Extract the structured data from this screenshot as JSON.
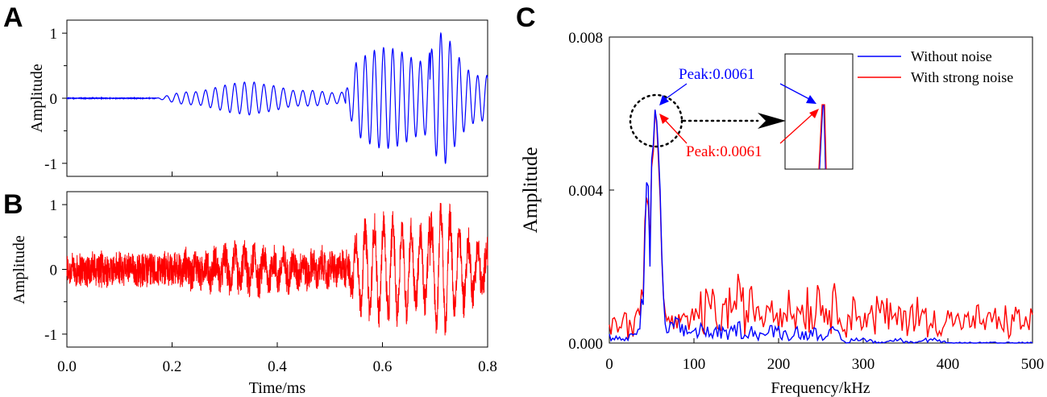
{
  "panels": {
    "a": {
      "letter": "A"
    },
    "b": {
      "letter": "B"
    },
    "c": {
      "letter": "C"
    }
  },
  "colors": {
    "without_noise": "#0000ff",
    "with_noise": "#ff0000",
    "axes": "#000000",
    "annotation_circle": "#000000"
  },
  "chart_data": [
    {
      "id": "A",
      "type": "line",
      "title": "",
      "xlabel": "",
      "ylabel": "Amplitude",
      "xlim": [
        0.0,
        0.8
      ],
      "ylim": [
        -1.2,
        1.2
      ],
      "yticks": [
        "-1",
        "0",
        "1"
      ],
      "ytick_values": [
        -1,
        0,
        1
      ],
      "xticks_shown": false,
      "grid": false,
      "series": [
        {
          "color": "#0000ff",
          "points": [
            [
              0.0,
              0.0
            ],
            [
              0.17,
              0.0
            ],
            [
              0.19,
              0.04
            ],
            [
              0.21,
              0.08
            ],
            [
              0.23,
              0.1
            ],
            [
              0.25,
              0.1
            ],
            [
              0.27,
              0.14
            ],
            [
              0.29,
              0.18
            ],
            [
              0.31,
              0.22
            ],
            [
              0.33,
              0.24
            ],
            [
              0.35,
              0.26
            ],
            [
              0.37,
              0.22
            ],
            [
              0.39,
              0.2
            ],
            [
              0.41,
              0.16
            ],
            [
              0.43,
              0.12
            ],
            [
              0.45,
              0.12
            ],
            [
              0.47,
              0.12
            ],
            [
              0.49,
              0.1
            ],
            [
              0.51,
              0.08
            ],
            [
              0.53,
              0.1
            ],
            [
              0.55,
              0.55
            ],
            [
              0.56,
              0.62
            ],
            [
              0.58,
              0.72
            ],
            [
              0.6,
              0.78
            ],
            [
              0.62,
              0.76
            ],
            [
              0.64,
              0.7
            ],
            [
              0.66,
              0.6
            ],
            [
              0.68,
              0.55
            ],
            [
              0.7,
              0.85
            ],
            [
              0.71,
              1.0
            ],
            [
              0.72,
              1.0
            ],
            [
              0.74,
              0.7
            ],
            [
              0.76,
              0.45
            ],
            [
              0.78,
              0.35
            ],
            [
              0.8,
              0.35
            ]
          ],
          "note": "envelope of oscillating acoustic signal, amplitude values"
        }
      ]
    },
    {
      "id": "B",
      "type": "line",
      "title": "",
      "xlabel": "Time/ms",
      "ylabel": "Amplitude",
      "xlim": [
        0.0,
        0.8
      ],
      "ylim": [
        -1.2,
        1.2
      ],
      "xticks": [
        "0.0",
        "0.2",
        "0.4",
        "0.6",
        "0.8"
      ],
      "xtick_values": [
        0.0,
        0.2,
        0.4,
        0.6,
        0.8
      ],
      "yticks": [
        "-1",
        "0",
        "1"
      ],
      "ytick_values": [
        -1,
        0,
        1
      ],
      "grid": false,
      "series": [
        {
          "color": "#ff0000",
          "noise_level": 0.3,
          "note": "same signal as A with strong additive noise, peaks about 1.0 near 0.71 ms"
        }
      ]
    },
    {
      "id": "C",
      "type": "line",
      "title": "",
      "xlabel": "Frequency/kHz",
      "ylabel": "Amplitude",
      "xlim": [
        0,
        500
      ],
      "ylim": [
        0.0,
        0.008
      ],
      "xticks": [
        "0",
        "100",
        "200",
        "300",
        "400",
        "500"
      ],
      "xtick_values": [
        0,
        100,
        200,
        300,
        400,
        500
      ],
      "yticks": [
        "0.000",
        "0.004",
        "0.008"
      ],
      "ytick_values": [
        0.0,
        0.004,
        0.008
      ],
      "grid": false,
      "legend": {
        "position": "top-right",
        "entries": [
          {
            "label": "Without noise",
            "color": "#0000ff"
          },
          {
            "label": "With strong noise",
            "color": "#ff0000"
          }
        ]
      },
      "series": [
        {
          "name": "Without noise",
          "color": "#0000ff",
          "x": [
            0,
            10,
            20,
            30,
            35,
            40,
            42,
            44,
            46,
            48,
            50,
            52,
            54,
            56,
            58,
            60,
            62,
            64,
            66,
            70,
            80,
            90,
            100,
            110,
            120,
            130,
            140,
            150,
            160,
            170,
            180,
            190,
            200,
            210,
            220,
            230,
            240,
            250,
            260,
            270,
            275,
            280,
            290,
            300,
            320,
            340,
            360,
            380,
            400,
            420,
            440,
            460,
            480,
            500
          ],
          "y": [
            0.0002,
            0.0001,
            0.0001,
            0.0002,
            0.0003,
            0.001,
            0.0028,
            0.0042,
            0.0041,
            0.002,
            0.0048,
            0.0052,
            0.0061,
            0.0058,
            0.005,
            0.004,
            0.0023,
            0.0012,
            0.0005,
            0.0004,
            0.0004,
            0.0003,
            0.0003,
            0.0004,
            0.0002,
            0.0003,
            0.0002,
            0.0004,
            0.0003,
            0.0003,
            0.0002,
            0.0003,
            0.0003,
            0.0002,
            0.0003,
            0.0002,
            0.0003,
            0.0002,
            0.0003,
            0.0002,
            0.0001,
            0.0,
            0.0001,
            0.0001,
            0.0,
            0.0001,
            0.0,
            0.0001,
            0.0,
            0.0,
            0.0,
            0.0,
            0.0,
            0.0
          ]
        },
        {
          "name": "With strong noise",
          "color": "#ff0000",
          "x": [
            0,
            10,
            20,
            30,
            35,
            40,
            42,
            44,
            46,
            48,
            50,
            52,
            54,
            56,
            58,
            60,
            62,
            64,
            66,
            70,
            80,
            90,
            100,
            110,
            120,
            130,
            140,
            150,
            160,
            170,
            180,
            190,
            200,
            210,
            220,
            230,
            240,
            250,
            260,
            270,
            280,
            290,
            300,
            320,
            340,
            360,
            380,
            400,
            420,
            440,
            460,
            480,
            500
          ],
          "y": [
            0.0005,
            0.0004,
            0.0006,
            0.0006,
            0.0006,
            0.0012,
            0.0032,
            0.0038,
            0.0036,
            0.0026,
            0.0046,
            0.005,
            0.0061,
            0.0057,
            0.0048,
            0.0038,
            0.0022,
            0.0012,
            0.0008,
            0.0006,
            0.0005,
            0.0005,
            0.0007,
            0.0008,
            0.001,
            0.0006,
            0.0009,
            0.0012,
            0.0008,
            0.001,
            0.0007,
            0.0011,
            0.0008,
            0.001,
            0.0007,
            0.0011,
            0.0008,
            0.0012,
            0.0008,
            0.001,
            0.0007,
            0.0008,
            0.0006,
            0.0008,
            0.0006,
            0.0008,
            0.0005,
            0.0007,
            0.0005,
            0.0006,
            0.0005,
            0.0006,
            0.0005
          ]
        }
      ],
      "annotations": [
        {
          "text": "Peak:0.0061",
          "color": "#0000ff",
          "target_x": 62,
          "target_y": 0.0061
        },
        {
          "text": "Peak:0.0061",
          "color": "#ff0000",
          "target_x": 62,
          "target_y": 0.006
        }
      ]
    }
  ]
}
